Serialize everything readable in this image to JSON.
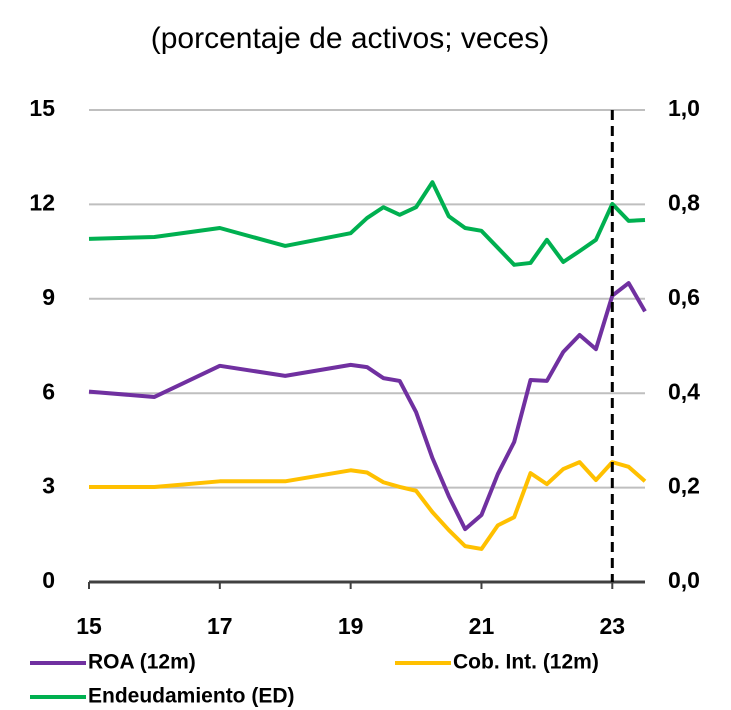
{
  "chart_data": {
    "type": "line",
    "title": "(porcentaje de activos; veces)",
    "x": [
      15,
      16,
      17,
      18,
      19,
      19.25,
      19.5,
      19.75,
      20,
      20.25,
      20.5,
      20.75,
      21,
      21.25,
      21.5,
      21.75,
      22,
      22.25,
      22.5,
      22.75,
      23,
      23.25,
      23.5
    ],
    "series": [
      {
        "name": "ROA (12m)",
        "color": "#7030a0",
        "values": [
          6.05,
          5.88,
          6.87,
          6.55,
          6.9,
          6.83,
          6.48,
          6.39,
          5.4,
          3.94,
          2.73,
          1.68,
          2.13,
          3.43,
          4.45,
          6.42,
          6.39,
          7.31,
          7.85,
          7.4,
          9.1,
          9.5,
          8.6
        ]
      },
      {
        "name": "Cob. Int. (12m)",
        "color": "#ffc000",
        "values": [
          3.02,
          3.02,
          3.2,
          3.2,
          3.55,
          3.48,
          3.17,
          3.02,
          2.9,
          2.22,
          1.65,
          1.14,
          1.05,
          1.8,
          2.06,
          3.46,
          3.11,
          3.59,
          3.81,
          3.24,
          3.81,
          3.66,
          3.2
        ]
      },
      {
        "name": "Endeudamiento (ED)",
        "color": "#00b050",
        "axis": "y2",
        "values": [
          0.727,
          0.731,
          0.75,
          0.712,
          0.739,
          0.771,
          0.794,
          0.778,
          0.794,
          0.847,
          0.775,
          0.75,
          0.744,
          0.708,
          0.672,
          0.676,
          0.725,
          0.678,
          0.701,
          0.725,
          0.801,
          0.765,
          0.767
        ]
      }
    ],
    "xlim": [
      15,
      23.5
    ],
    "xticks": [
      15,
      17,
      19,
      21,
      23
    ],
    "ylim": [
      0,
      15
    ],
    "yticks": [
      0,
      3,
      6,
      9,
      12,
      15
    ],
    "y2lim": [
      0,
      1
    ],
    "y2ticks": [
      {
        "value": 0,
        "label": "0,0"
      },
      {
        "value": 0.2,
        "label": "0,2"
      },
      {
        "value": 0.4,
        "label": "0,4"
      },
      {
        "value": 0.6,
        "label": "0,6"
      },
      {
        "value": 0.8,
        "label": "0,8"
      },
      {
        "value": 1,
        "label": "1,0"
      }
    ],
    "grid": true,
    "vline_x": 23
  }
}
